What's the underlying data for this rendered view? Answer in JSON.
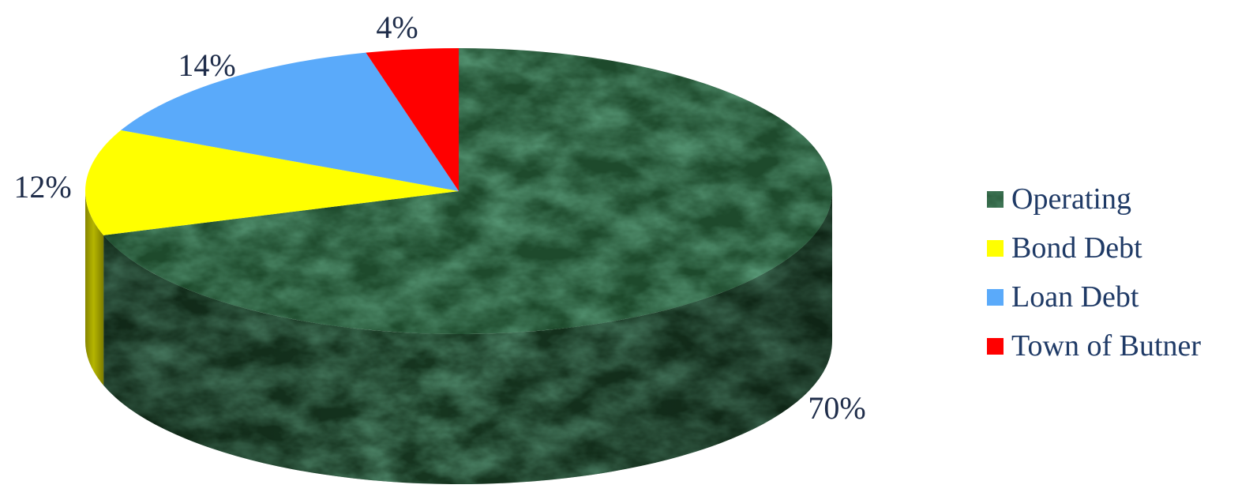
{
  "chart_data": {
    "type": "pie",
    "style": "3d-tilted",
    "title": "",
    "start_angle_deg": 0,
    "direction": "clockwise",
    "legend_position": "right",
    "slices": [
      {
        "name": "Operating",
        "value": 70,
        "label": "70%",
        "color": "#1e4a2c"
      },
      {
        "name": "Bond Debt",
        "value": 12,
        "label": "12%",
        "color": "#ffff00"
      },
      {
        "name": "Loan Debt",
        "value": 14,
        "label": "14%",
        "color": "#5aaafa"
      },
      {
        "name": "Town of Butner",
        "value": 4,
        "label": "4%",
        "color": "#ff0000"
      }
    ]
  }
}
